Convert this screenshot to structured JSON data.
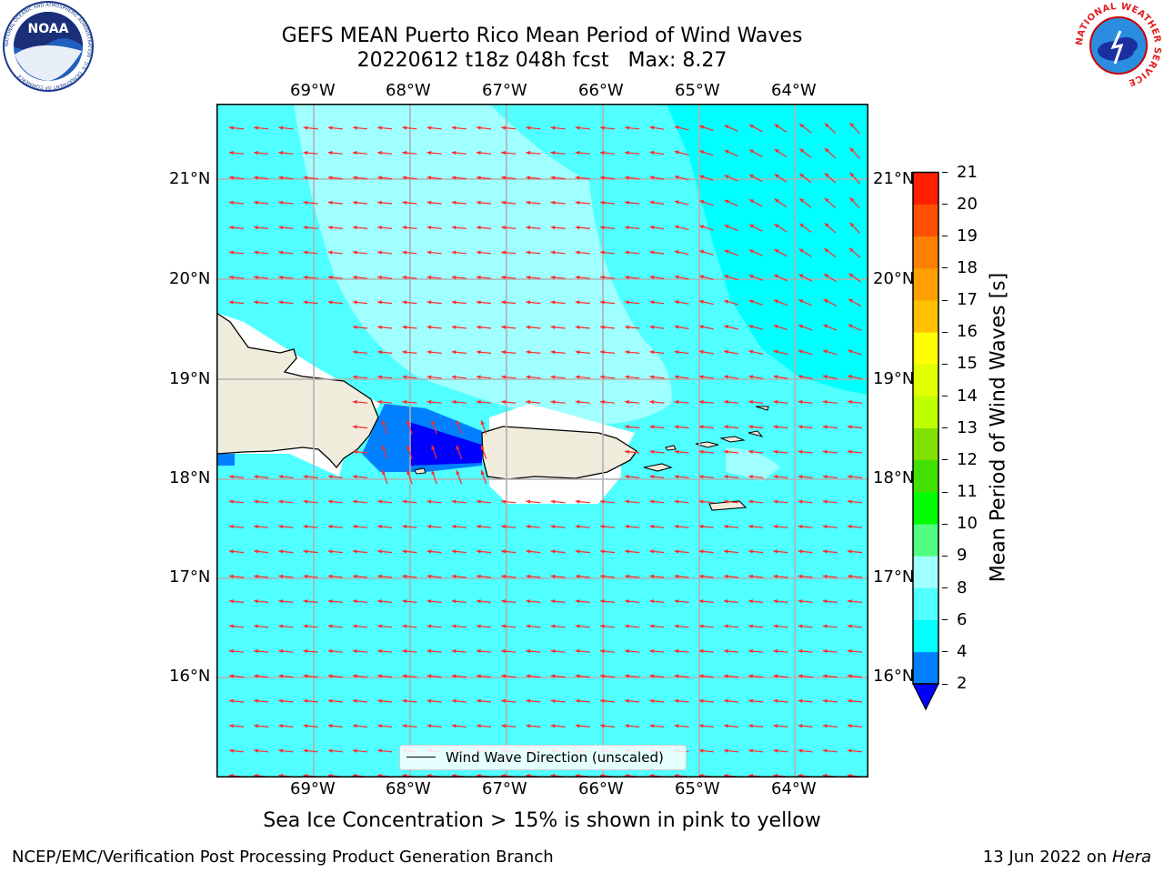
{
  "title": {
    "line1": "GEFS MEAN Puerto Rico Mean Period of Wind Waves",
    "line2": "20220612 t18z 048h fcst   Max: 8.27"
  },
  "logos": {
    "noara": "NOAA",
    "noaa_ring": "NATIONAL OCEANIC AND ATMOSPHERIC ADMINISTRATION · U.S. DEPARTMENT OF COMMERCE",
    "nws_ring": "NATIONAL WEATHER SERVICE"
  },
  "map": {
    "lon_labels": [
      "69°W",
      "68°W",
      "67°W",
      "66°W",
      "65°W",
      "64°W"
    ],
    "lat_labels": [
      "21°N",
      "20°N",
      "19°N",
      "18°N",
      "17°N",
      "16°N"
    ],
    "lon_range": [
      -70.0,
      -63.25
    ],
    "lat_range": [
      15.05,
      21.75
    ],
    "legend_label": "Wind Wave Direction (unscaled)",
    "land_color": "#efecdc",
    "arrow_color": "#ff2a2a"
  },
  "colorbar": {
    "title": "Mean Period of Wind Waves [s]",
    "levels": [
      "2",
      "4",
      "6",
      "8",
      "9",
      "10",
      "11",
      "12",
      "13",
      "14",
      "15",
      "16",
      "17",
      "18",
      "19",
      "20",
      "21"
    ],
    "colors": [
      "#0080ff",
      "#00ffff",
      "#50ffff",
      "#a0ffff",
      "#50ff80",
      "#00ff00",
      "#40e000",
      "#80e000",
      "#c0ff00",
      "#e0ff00",
      "#ffff00",
      "#ffc000",
      "#ffa000",
      "#ff8000",
      "#ff5000",
      "#ff2000"
    ],
    "under_color": "#0000ff"
  },
  "note": "Sea Ice Concentration > 15% is shown in pink to yellow",
  "footer": {
    "left": "NCEP/EMC/Verification Post Processing Product Generation Branch",
    "date": "13 Jun 2022 on ",
    "machine": "Hera"
  }
}
